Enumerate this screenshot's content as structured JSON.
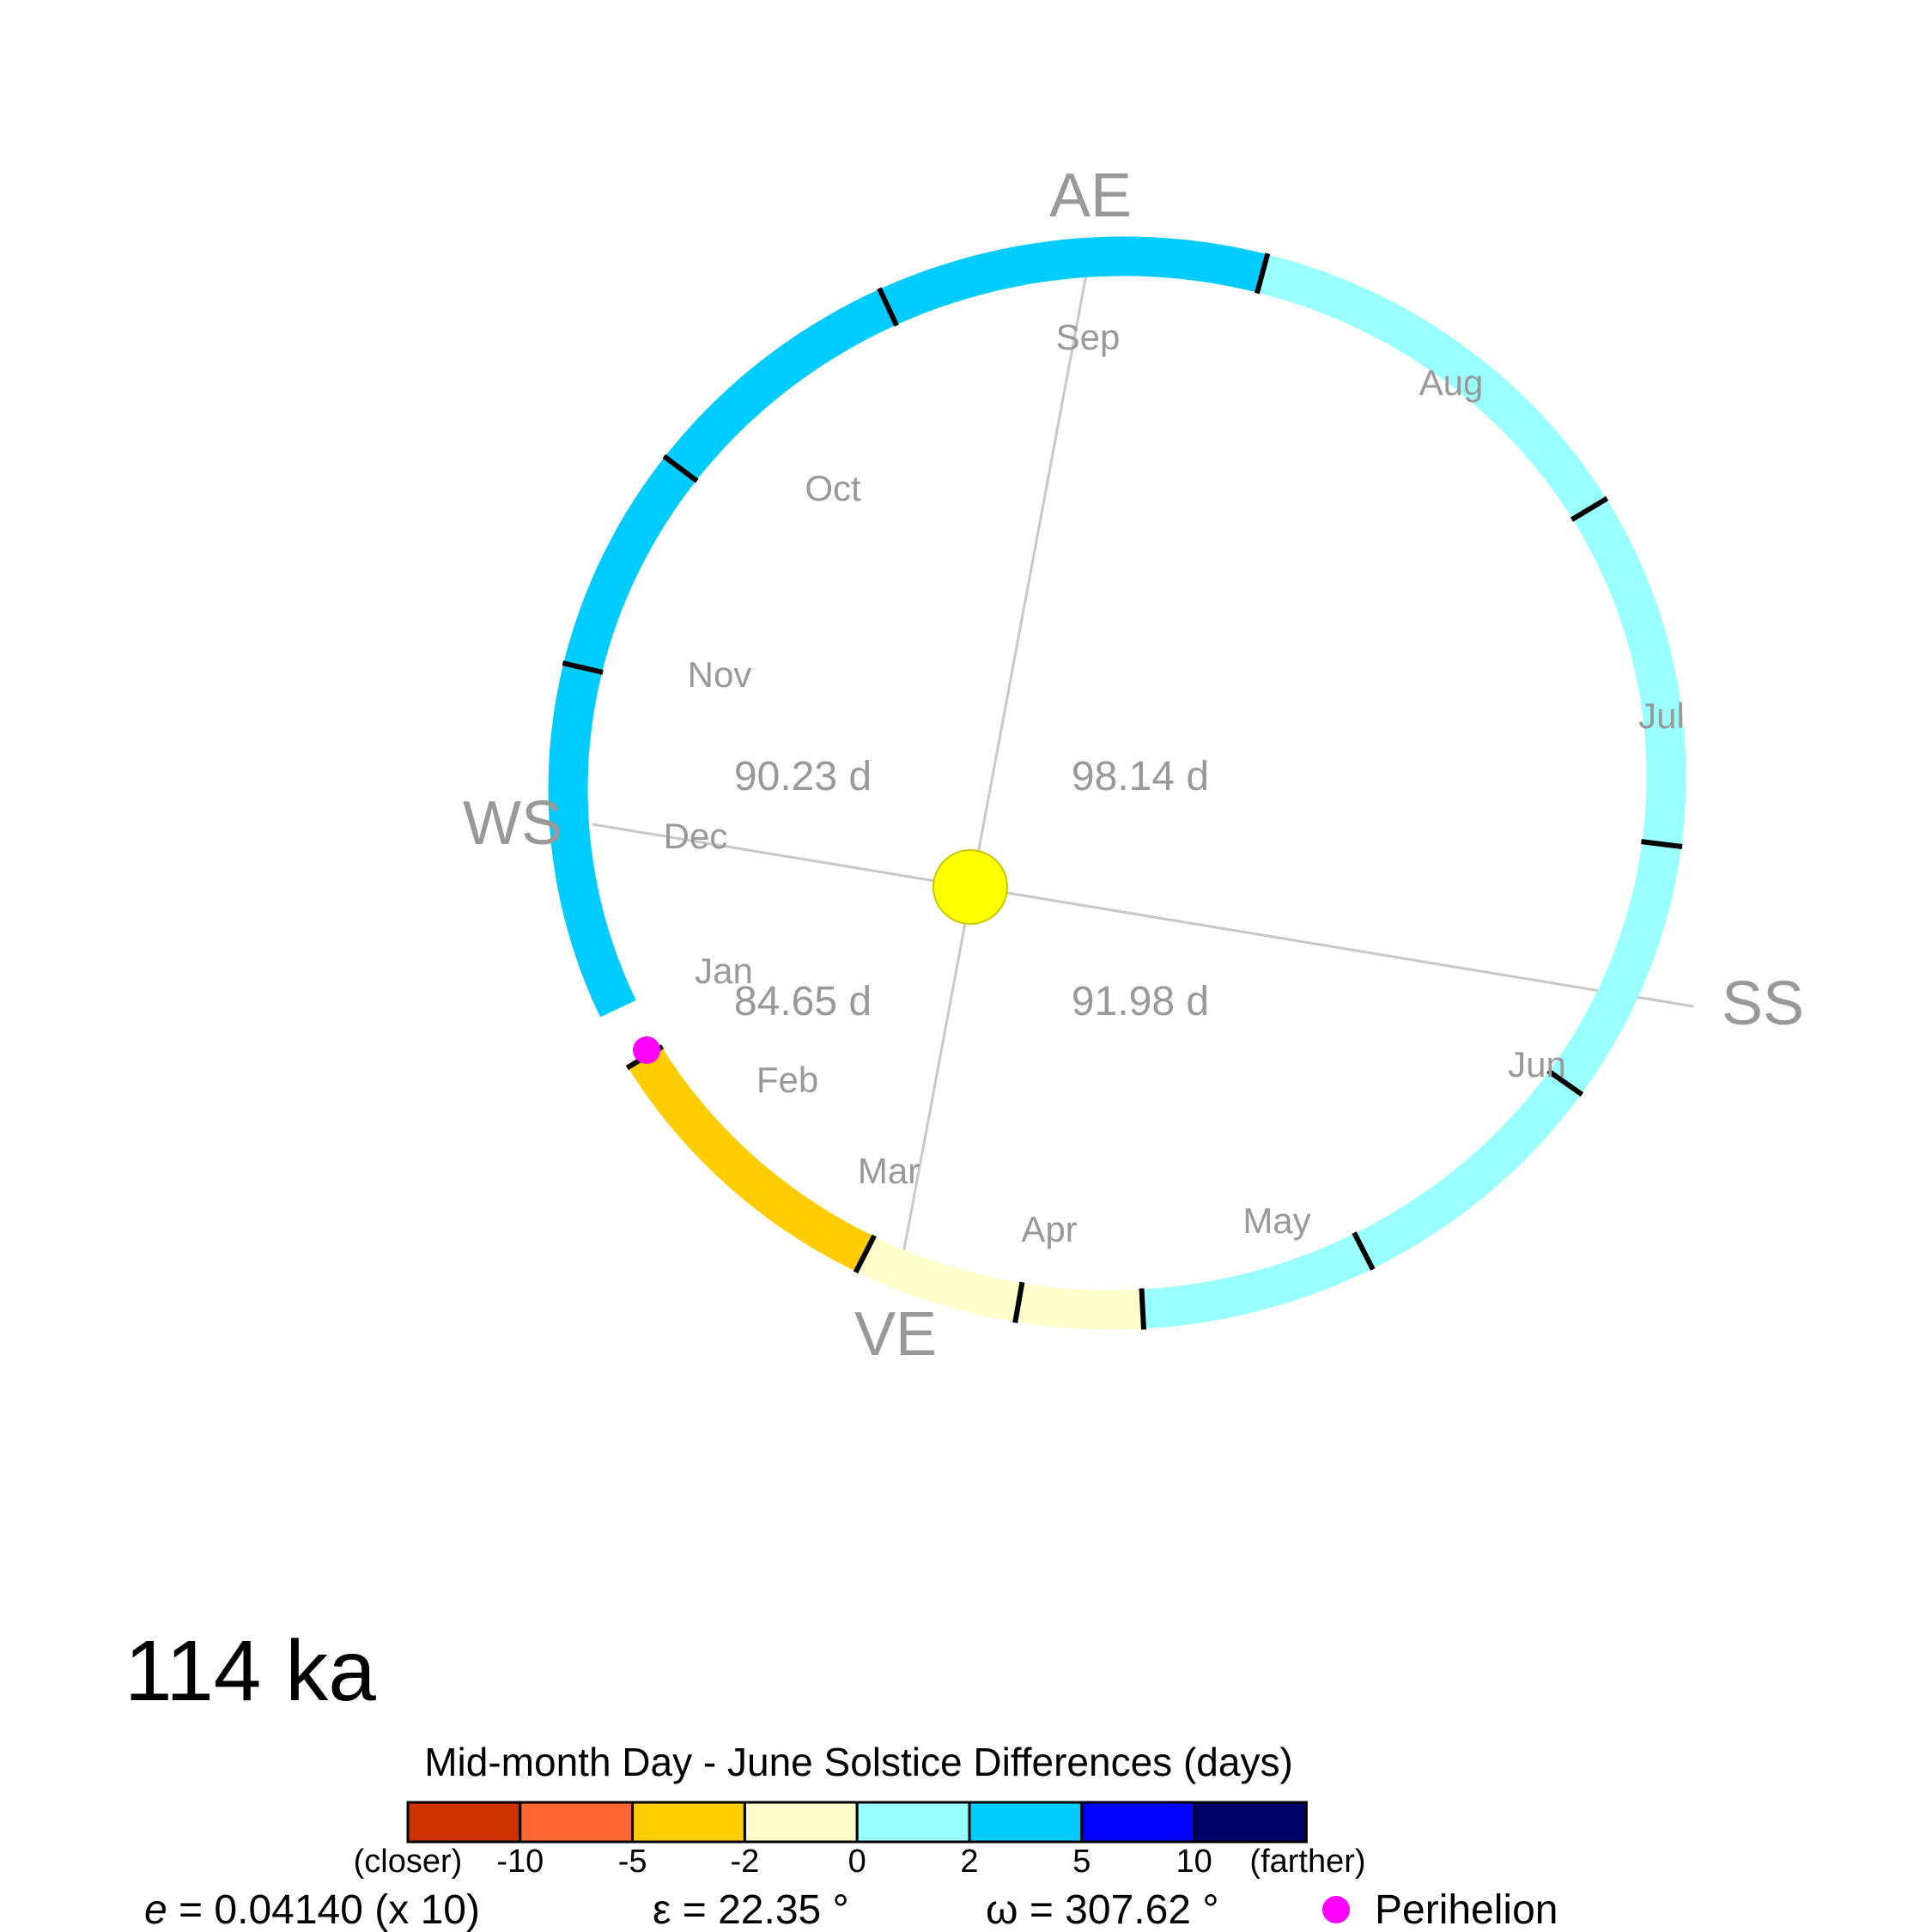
{
  "title": "114 ka",
  "equinox_labels": {
    "ae": "AE",
    "ws": "WS",
    "ss": "SS",
    "ve": "VE"
  },
  "months": [
    "Jan",
    "Feb",
    "Mar",
    "Apr",
    "May",
    "Jun",
    "Jul",
    "Aug",
    "Sep",
    "Oct",
    "Nov",
    "Dec"
  ],
  "season_lengths": [
    {
      "id": "upper-left",
      "text": "90.23 d"
    },
    {
      "id": "upper-right",
      "text": "98.14 d"
    },
    {
      "id": "lower-left",
      "text": "84.65 d"
    },
    {
      "id": "lower-right",
      "text": "91.98 d"
    }
  ],
  "legend": {
    "title": "Mid-month Day - June Solstice Differences (days)",
    "left_note": "(closer)",
    "right_note": "(farther)",
    "ticks": [
      "-10",
      "-5",
      "-2",
      "0",
      "2",
      "5",
      "10"
    ],
    "colors": [
      "#cc3300",
      "#ff6633",
      "#ffcc00",
      "#ffffcc",
      "#99ffff",
      "#00ccff",
      "#0000ff",
      "#000066"
    ]
  },
  "params": {
    "e_symbol": "e",
    "e_value": " = 0.04140 (x 10)",
    "epsilon": "ε = 22.35 °",
    "omega": "ω = 307.62 °",
    "perihelion_label": "Perihelion"
  },
  "colors": {
    "sun": "#ffff00",
    "sun_stroke": "#c8c800",
    "perihelion": "#ff00ff",
    "axis": "#c8c8c8"
  },
  "chart_data": {
    "type": "orbit",
    "eccentricity": 0.0414,
    "eccentricity_display_scale": 10,
    "obliquity_deg": 22.35,
    "perihelion_longitude_deg": 307.62,
    "month_segments": [
      {
        "month": "Jan",
        "color_class": "-5..-2"
      },
      {
        "month": "Feb",
        "color_class": "-2..0"
      },
      {
        "month": "Mar",
        "color_class": "-2..0"
      },
      {
        "month": "Apr",
        "color_class": "0..2"
      },
      {
        "month": "May",
        "color_class": "0..2"
      },
      {
        "month": "Jun",
        "color_class": "0..2"
      },
      {
        "month": "Jul",
        "color_class": "0..2"
      },
      {
        "month": "Aug",
        "color_class": "0..2"
      },
      {
        "month": "Sep",
        "color_class": "2..5"
      },
      {
        "month": "Oct",
        "color_class": "2..5"
      },
      {
        "month": "Nov",
        "color_class": "2..5"
      },
      {
        "month": "Dec",
        "color_class": "2..5"
      }
    ]
  }
}
